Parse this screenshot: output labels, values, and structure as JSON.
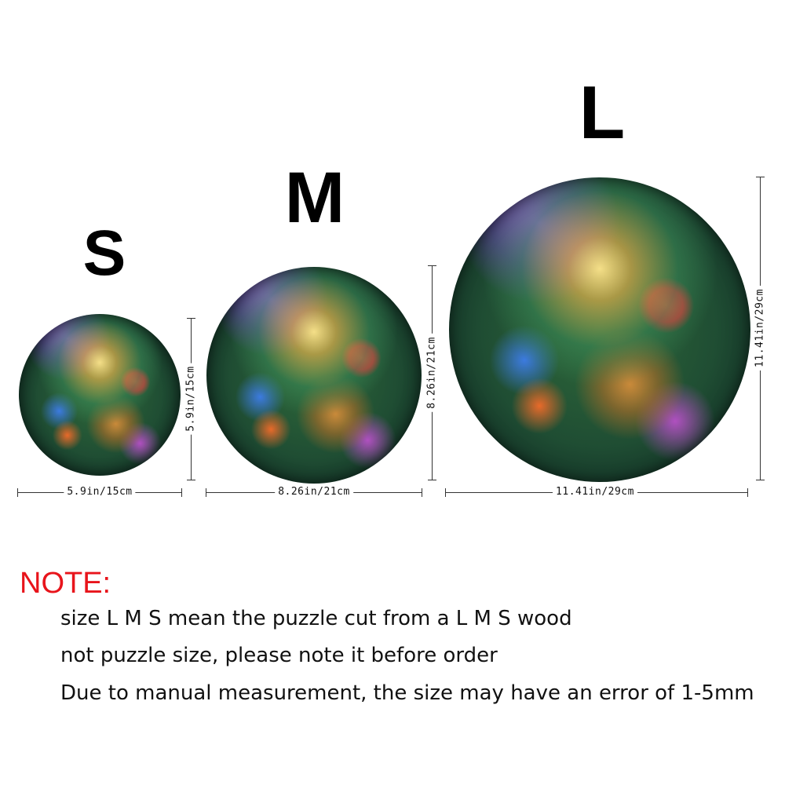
{
  "sizes": [
    {
      "letter": "S",
      "width_label": "5.9in/15cm",
      "height_label": "5.9in/15cm"
    },
    {
      "letter": "M",
      "width_label": "8.26in/21cm",
      "height_label": "8.26in/21cm"
    },
    {
      "letter": "L",
      "width_label": "11.41in/29cm",
      "height_label": "11.41in/29cm"
    }
  ],
  "note": {
    "title": "NOTE:",
    "lines": [
      "size L M S mean the puzzle cut from a L M S wood",
      "not puzzle size, please note it before order",
      "Due to manual measurement, the size may have an error of 1-5mm"
    ]
  }
}
